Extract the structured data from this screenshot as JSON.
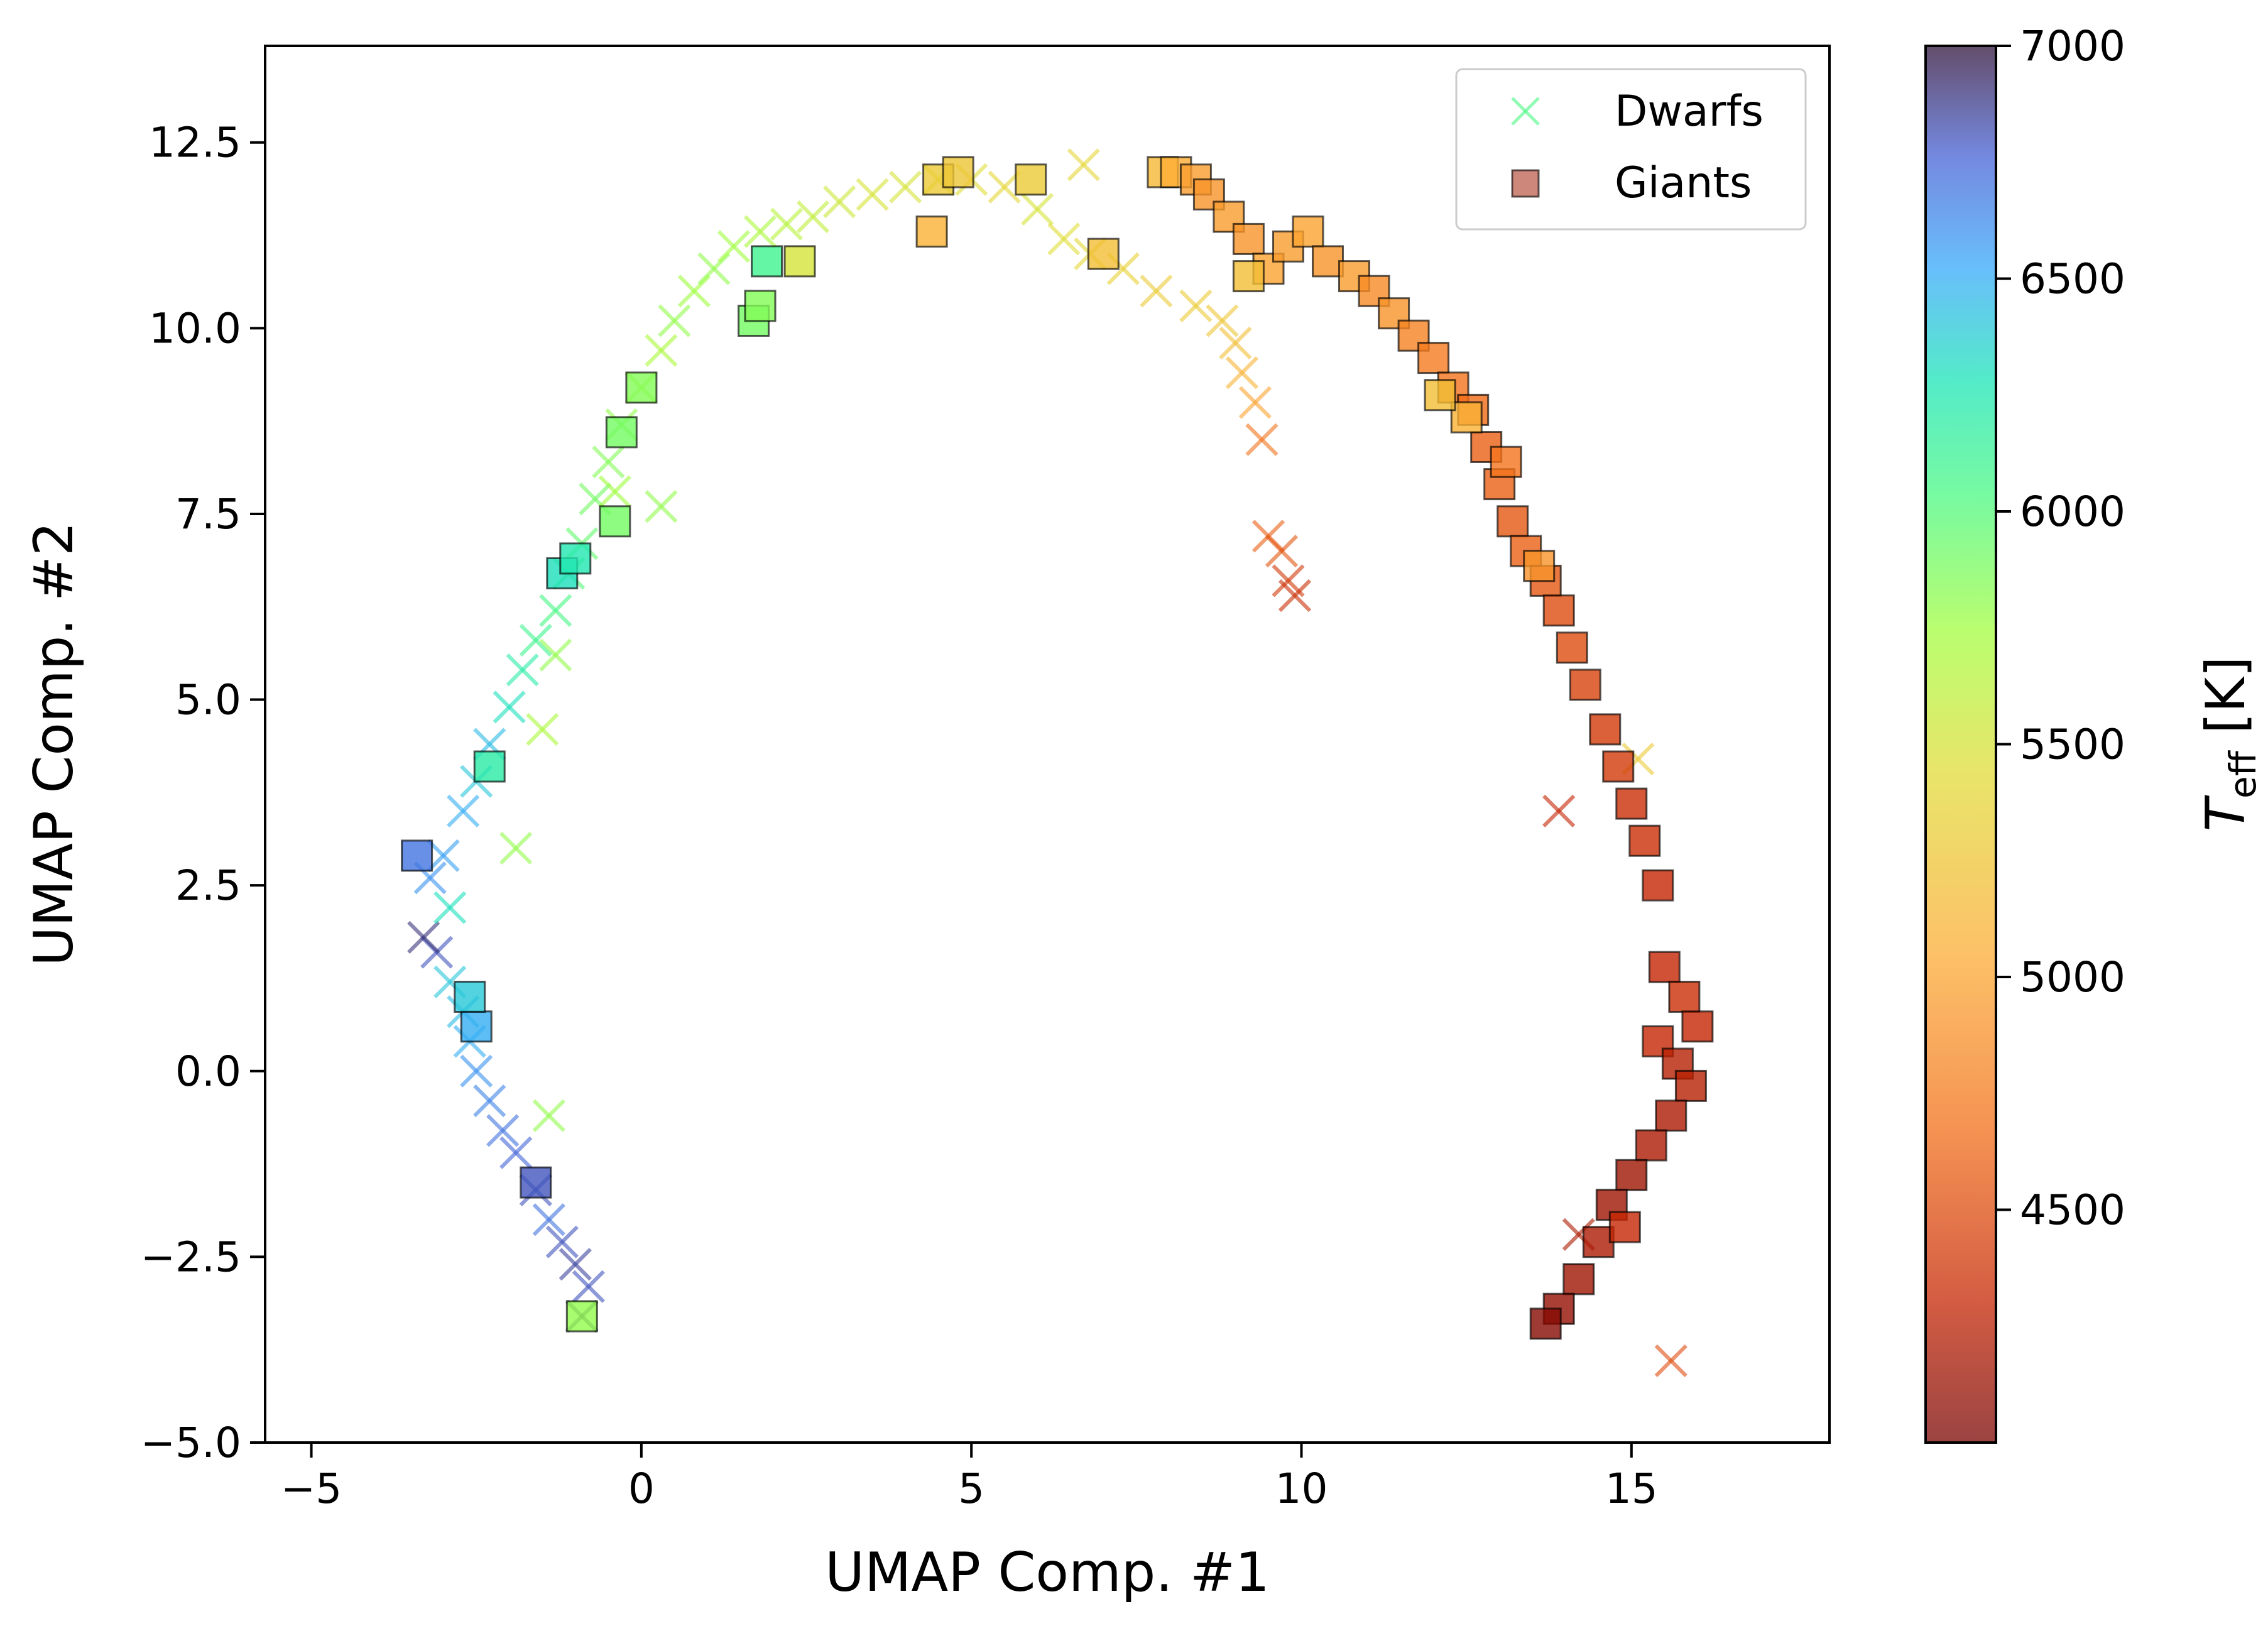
{
  "chart_data": {
    "type": "scatter",
    "title": "",
    "xlabel": "UMAP Comp. #1",
    "ylabel": "UMAP Comp. #2",
    "xlim": [
      -5.7,
      18.0
    ],
    "ylim": [
      -5.0,
      13.8
    ],
    "xticks": [
      -5,
      0,
      5,
      10,
      15
    ],
    "xtick_labels": [
      "−5",
      "0",
      "5",
      "10",
      "15"
    ],
    "yticks": [
      -5.0,
      -2.5,
      0.0,
      2.5,
      5.0,
      7.5,
      10.0,
      12.5
    ],
    "ytick_labels": [
      "−5.0",
      "−2.5",
      "0.0",
      "2.5",
      "5.0",
      "7.5",
      "10.0",
      "12.5"
    ],
    "grid": false,
    "legend": {
      "position": "top-right",
      "entries": [
        "Dwarfs",
        "Giants"
      ]
    },
    "colorbar": {
      "label_main": "T",
      "label_sub": "eff",
      "label_unit": " [K]",
      "range": [
        4000,
        7000
      ],
      "ticks": [
        4500,
        5000,
        5500,
        6000,
        6500,
        7000
      ],
      "tick_labels": [
        "4500",
        "5000",
        "5500",
        "6000",
        "6500",
        "7000"
      ],
      "colormap": "turbo (reversed)"
    },
    "series": [
      {
        "name": "Dwarfs",
        "marker": "x",
        "points": [
          [
            -0.9,
            -3.3,
            6900
          ],
          [
            -0.8,
            -2.9,
            6800
          ],
          [
            -1.0,
            -2.6,
            6850
          ],
          [
            -1.2,
            -2.3,
            6800
          ],
          [
            -1.4,
            -2.0,
            6700
          ],
          [
            -1.6,
            -1.6,
            6800
          ],
          [
            -1.9,
            -1.1,
            6750
          ],
          [
            -2.1,
            -0.8,
            6700
          ],
          [
            -2.3,
            -0.4,
            6650
          ],
          [
            -2.5,
            0.0,
            6600
          ],
          [
            -2.6,
            0.4,
            6500
          ],
          [
            -2.7,
            0.8,
            6450
          ],
          [
            -2.9,
            1.2,
            6400
          ],
          [
            -3.1,
            1.6,
            6800
          ],
          [
            -3.3,
            1.8,
            6900
          ],
          [
            -3.2,
            2.6,
            6600
          ],
          [
            -3.0,
            2.9,
            6550
          ],
          [
            -2.7,
            3.5,
            6500
          ],
          [
            -2.5,
            3.9,
            6400
          ],
          [
            -2.3,
            4.4,
            6450
          ],
          [
            -2.0,
            4.9,
            6300
          ],
          [
            -1.8,
            5.4,
            6200
          ],
          [
            -1.6,
            5.8,
            6100
          ],
          [
            -1.3,
            6.2,
            6050
          ],
          [
            -1.1,
            6.7,
            6000
          ],
          [
            -0.9,
            7.1,
            5950
          ],
          [
            -0.7,
            7.7,
            5900
          ],
          [
            -0.5,
            8.2,
            5850
          ],
          [
            -0.3,
            8.7,
            5800
          ],
          [
            0.0,
            9.2,
            5750
          ],
          [
            0.3,
            9.7,
            5700
          ],
          [
            0.5,
            10.1,
            5800
          ],
          [
            0.8,
            10.5,
            5750
          ],
          [
            1.1,
            10.8,
            5800
          ],
          [
            1.4,
            11.1,
            5750
          ],
          [
            1.8,
            11.3,
            5700
          ],
          [
            2.2,
            11.4,
            5650
          ],
          [
            2.6,
            11.5,
            5600
          ],
          [
            3.0,
            11.7,
            5550
          ],
          [
            3.5,
            11.8,
            5500
          ],
          [
            4.0,
            11.9,
            5500
          ],
          [
            4.5,
            12.0,
            5450
          ],
          [
            5.0,
            12.0,
            5450
          ],
          [
            5.5,
            11.9,
            5400
          ],
          [
            6.0,
            11.6,
            5500
          ],
          [
            6.4,
            11.2,
            5450
          ],
          [
            6.8,
            11.0,
            5400
          ],
          [
            7.3,
            10.8,
            5350
          ],
          [
            7.8,
            10.5,
            5300
          ],
          [
            8.4,
            10.3,
            5300
          ],
          [
            8.8,
            10.1,
            5250
          ],
          [
            9.0,
            9.8,
            5200
          ],
          [
            9.1,
            9.4,
            5100
          ],
          [
            9.3,
            9.0,
            5000
          ],
          [
            9.4,
            8.5,
            4700
          ],
          [
            9.5,
            7.2,
            4600
          ],
          [
            9.7,
            7.0,
            4550
          ],
          [
            9.8,
            6.6,
            4400
          ],
          [
            9.9,
            6.4,
            4350
          ],
          [
            0.3,
            7.6,
            5800
          ],
          [
            -1.5,
            4.6,
            5700
          ],
          [
            -1.3,
            5.6,
            5800
          ],
          [
            -0.4,
            7.8,
            5750
          ],
          [
            -2.9,
            2.2,
            6300
          ],
          [
            -1.9,
            3.0,
            5800
          ],
          [
            -1.4,
            -0.6,
            5800
          ],
          [
            6.7,
            12.2,
            5400
          ],
          [
            15.6,
            -3.9,
            4500
          ],
          [
            14.2,
            -2.2,
            4200
          ],
          [
            15.1,
            4.2,
            5300
          ],
          [
            13.9,
            3.5,
            4300
          ]
        ]
      },
      {
        "name": "Giants",
        "marker": "s",
        "points": [
          [
            -0.9,
            -3.3,
            5800
          ],
          [
            -1.6,
            -1.5,
            6800
          ],
          [
            -2.5,
            0.6,
            6500
          ],
          [
            -2.6,
            1.0,
            6400
          ],
          [
            -3.4,
            2.9,
            6700
          ],
          [
            -2.3,
            4.1,
            6200
          ],
          [
            -1.2,
            6.7,
            6300
          ],
          [
            -1.0,
            6.9,
            6250
          ],
          [
            -0.4,
            7.4,
            5900
          ],
          [
            -0.3,
            8.6,
            5900
          ],
          [
            0.0,
            9.2,
            5850
          ],
          [
            1.7,
            10.1,
            5900
          ],
          [
            1.8,
            10.3,
            5850
          ],
          [
            1.9,
            10.9,
            6100
          ],
          [
            2.4,
            10.9,
            5500
          ],
          [
            4.4,
            11.3,
            5100
          ],
          [
            4.5,
            12.0,
            5300
          ],
          [
            4.8,
            12.1,
            5250
          ],
          [
            5.9,
            12.0,
            5300
          ],
          [
            7.0,
            11.0,
            5200
          ],
          [
            7.9,
            12.1,
            5150
          ],
          [
            8.1,
            12.1,
            5050
          ],
          [
            8.4,
            12.0,
            4950
          ],
          [
            8.6,
            11.8,
            4900
          ],
          [
            8.9,
            11.5,
            4950
          ],
          [
            9.2,
            11.2,
            4900
          ],
          [
            9.5,
            10.8,
            5000
          ],
          [
            9.8,
            11.1,
            4950
          ],
          [
            10.1,
            11.3,
            5000
          ],
          [
            10.4,
            10.9,
            4900
          ],
          [
            10.8,
            10.7,
            4950
          ],
          [
            11.1,
            10.5,
            4850
          ],
          [
            11.4,
            10.2,
            4900
          ],
          [
            11.7,
            9.9,
            4800
          ],
          [
            12.0,
            9.6,
            4750
          ],
          [
            12.3,
            9.2,
            4700
          ],
          [
            12.6,
            8.9,
            4650
          ],
          [
            12.8,
            8.4,
            4600
          ],
          [
            13.0,
            7.9,
            4600
          ],
          [
            13.2,
            7.4,
            4550
          ],
          [
            13.4,
            7.0,
            4600
          ],
          [
            13.7,
            6.6,
            4550
          ],
          [
            13.9,
            6.2,
            4500
          ],
          [
            14.1,
            5.7,
            4500
          ],
          [
            14.3,
            5.2,
            4450
          ],
          [
            14.6,
            4.6,
            4400
          ],
          [
            14.8,
            4.1,
            4400
          ],
          [
            15.0,
            3.6,
            4350
          ],
          [
            15.2,
            3.1,
            4350
          ],
          [
            15.4,
            2.5,
            4300
          ],
          [
            15.5,
            1.4,
            4300
          ],
          [
            15.8,
            1.0,
            4350
          ],
          [
            16.0,
            0.6,
            4300
          ],
          [
            15.4,
            0.4,
            4300
          ],
          [
            15.7,
            0.1,
            4250
          ],
          [
            15.9,
            -0.2,
            4250
          ],
          [
            15.6,
            -0.6,
            4200
          ],
          [
            15.3,
            -1.0,
            4200
          ],
          [
            15.0,
            -1.4,
            4150
          ],
          [
            14.7,
            -1.8,
            4150
          ],
          [
            14.5,
            -2.3,
            4200
          ],
          [
            14.2,
            -2.8,
            4150
          ],
          [
            13.9,
            -3.2,
            4100
          ],
          [
            13.7,
            -3.4,
            4050
          ],
          [
            9.2,
            10.7,
            5200
          ],
          [
            12.5,
            8.8,
            5100
          ],
          [
            13.6,
            6.8,
            4900
          ],
          [
            12.1,
            9.1,
            5200
          ],
          [
            13.1,
            8.2,
            4700
          ],
          [
            14.9,
            -2.1,
            4300
          ]
        ]
      }
    ]
  }
}
